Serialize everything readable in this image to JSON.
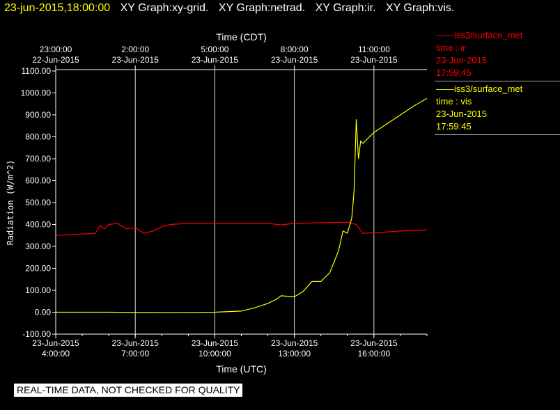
{
  "header": {
    "timestamp": "23-jun-2015,18:00:00",
    "graphs": [
      "XY Graph:xy-grid.",
      "XY Graph:netrad.",
      "XY Graph:ir.",
      "XY Graph:vis."
    ]
  },
  "disclaimer": "REAL-TIME DATA, NOT CHECKED FOR QUALITY",
  "legend": [
    {
      "name": "——iss3/surface_met",
      "line2": "time : ir",
      "line3": "23-Jun-2015",
      "line4": "17:59:45",
      "color": "#ff0000"
    },
    {
      "name": "——iss3/surface_met",
      "line2": "time : vis",
      "line3": "23-Jun-2015",
      "line4": "17:59:45",
      "color": "#ffff00"
    }
  ],
  "chart_data": {
    "type": "line",
    "xlabel_bottom": "Time (UTC)",
    "xlabel_top": "Time (CDT)",
    "ylabel": "Radiation (W/m^2)",
    "ylim": [
      -100,
      1100
    ],
    "xlim_hours_utc": [
      "23-Jun-2015 4:00:00",
      "23-Jun-2015 18:00:00"
    ],
    "grid": "vertical",
    "bottom_ticks": [
      {
        "date": "23-Jun-2015",
        "time": "4:00:00"
      },
      {
        "date": "23-Jun-2015",
        "time": "7:00:00"
      },
      {
        "date": "23-Jun-2015",
        "time": "10:00:00"
      },
      {
        "date": "23-Jun-2015",
        "time": "13:00:00"
      },
      {
        "date": "23-Jun-2015",
        "time": "16:00:00"
      }
    ],
    "top_ticks": [
      {
        "time": "23:00:00",
        "date": "22-Jun-2015"
      },
      {
        "time": "2:00:00",
        "date": "23-Jun-2015"
      },
      {
        "time": "5:00:00",
        "date": "23-Jun-2015"
      },
      {
        "time": "8:00:00",
        "date": "23-Jun-2015"
      },
      {
        "time": "11:00:00",
        "date": "23-Jun-2015"
      }
    ],
    "y_ticks": [
      "1100.00",
      "1000.00",
      "900.00",
      "800.00",
      "700.00",
      "600.00",
      "500.00",
      "400.00",
      "300.00",
      "200.00",
      "100.00",
      "0.00",
      "-100.00"
    ],
    "series": [
      {
        "name": "ir",
        "color": "#ff0000",
        "x": [
          "23-Jun-2015 04:00",
          "23-Jun-2015 05:30",
          "23-Jun-2015 05:40",
          "23-Jun-2015 05:50",
          "23-Jun-2015 06:00",
          "23-Jun-2015 06:20",
          "23-Jun-2015 06:40",
          "23-Jun-2015 07:00",
          "23-Jun-2015 07:20",
          "23-Jun-2015 07:40",
          "23-Jun-2015 08:00",
          "23-Jun-2015 08:20",
          "23-Jun-2015 09:00",
          "23-Jun-2015 10:00",
          "23-Jun-2015 11:00",
          "23-Jun-2015 12:00",
          "23-Jun-2015 12:30",
          "23-Jun-2015 13:00",
          "23-Jun-2015 14:00",
          "23-Jun-2015 15:00",
          "23-Jun-2015 15:20",
          "23-Jun-2015 15:35",
          "23-Jun-2015 16:00",
          "23-Jun-2015 17:00",
          "23-Jun-2015 18:00"
        ],
        "y": [
          350,
          360,
          395,
          380,
          400,
          405,
          380,
          385,
          360,
          370,
          390,
          400,
          405,
          405,
          405,
          405,
          398,
          405,
          408,
          410,
          400,
          360,
          362,
          370,
          375
        ]
      },
      {
        "name": "vis",
        "color": "#ffff00",
        "x": [
          "23-Jun-2015 04:00",
          "23-Jun-2015 06:00",
          "23-Jun-2015 08:00",
          "23-Jun-2015 10:00",
          "23-Jun-2015 11:00",
          "23-Jun-2015 11:30",
          "23-Jun-2015 12:00",
          "23-Jun-2015 12:20",
          "23-Jun-2015 12:30",
          "23-Jun-2015 13:00",
          "23-Jun-2015 13:20",
          "23-Jun-2015 13:40",
          "23-Jun-2015 14:00",
          "23-Jun-2015 14:20",
          "23-Jun-2015 14:40",
          "23-Jun-2015 14:50",
          "23-Jun-2015 15:00",
          "23-Jun-2015 15:10",
          "23-Jun-2015 15:15",
          "23-Jun-2015 15:20",
          "23-Jun-2015 15:25",
          "23-Jun-2015 15:30",
          "23-Jun-2015 15:35",
          "23-Jun-2015 16:00",
          "23-Jun-2015 16:30",
          "23-Jun-2015 17:00",
          "23-Jun-2015 17:30",
          "23-Jun-2015 18:00"
        ],
        "y": [
          0,
          0,
          -2,
          0,
          5,
          20,
          40,
          60,
          75,
          70,
          95,
          140,
          140,
          180,
          280,
          370,
          360,
          430,
          550,
          880,
          700,
          780,
          770,
          820,
          860,
          900,
          940,
          975
        ]
      }
    ]
  }
}
